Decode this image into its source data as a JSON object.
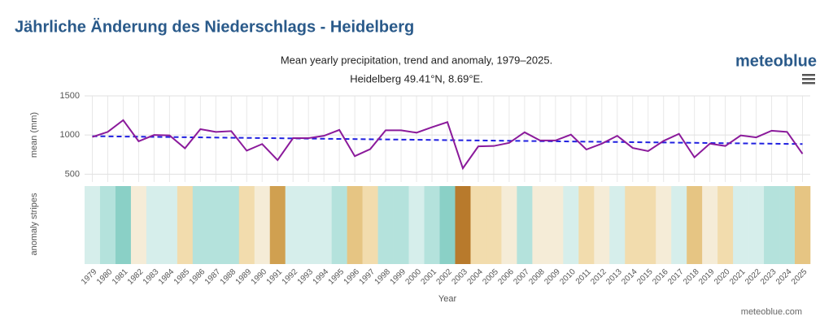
{
  "header": {
    "title": "Jährliche Änderung des Niederschlags - Heidelberg"
  },
  "brand": "meteoblue",
  "credit": "meteoblue.com",
  "chart_data": {
    "type": "line",
    "title": "Mean yearly precipitation, trend and anomaly, 1979–2025.",
    "subtitle": "Heidelberg 49.41°N, 8.69°E.",
    "y_label": "mean (mm)",
    "stripes_label": "anomaly stripes",
    "x_label": "Year",
    "categories": [
      "1979",
      "1980",
      "1981",
      "1982",
      "1983",
      "1984",
      "1985",
      "1986",
      "1987",
      "1988",
      "1989",
      "1990",
      "1991",
      "1992",
      "1993",
      "1994",
      "1995",
      "1996",
      "1997",
      "1998",
      "1999",
      "2000",
      "2001",
      "2002",
      "2003",
      "2004",
      "2005",
      "2006",
      "2007",
      "2008",
      "2009",
      "2010",
      "2011",
      "2012",
      "2013",
      "2014",
      "2015",
      "2016",
      "2017",
      "2018",
      "2019",
      "2020",
      "2021",
      "2022",
      "2023",
      "2024",
      "2025"
    ],
    "values": [
      975,
      1040,
      1190,
      920,
      1000,
      995,
      830,
      1075,
      1040,
      1050,
      800,
      885,
      680,
      960,
      960,
      990,
      1065,
      730,
      820,
      1060,
      1060,
      1030,
      1100,
      1165,
      575,
      855,
      860,
      900,
      1035,
      930,
      930,
      1005,
      815,
      890,
      990,
      835,
      795,
      925,
      1015,
      715,
      890,
      860,
      995,
      970,
      1055,
      1040,
      760
    ],
    "color": "#8b1a9b",
    "trend": {
      "color": "#2020e0",
      "values": [
        985,
        885
      ]
    },
    "stripe_colors": [
      "#d6eeeb",
      "#b4e2dc",
      "#8ad0c6",
      "#f5ecd7",
      "#d6eeeb",
      "#d6eeeb",
      "#f2dcad",
      "#b4e2dc",
      "#b4e2dc",
      "#b4e2dc",
      "#f2dcad",
      "#f5ecd7",
      "#d0a050",
      "#d6eeeb",
      "#d6eeeb",
      "#d6eeeb",
      "#b4e2dc",
      "#e6c583",
      "#f2dcad",
      "#b4e2dc",
      "#b4e2dc",
      "#d6eeeb",
      "#b4e2dc",
      "#8ad0c6",
      "#b87a2c",
      "#f2dcad",
      "#f2dcad",
      "#f5ecd7",
      "#b4e2dc",
      "#f5ecd7",
      "#f5ecd7",
      "#d6eeeb",
      "#f2dcad",
      "#f5ecd7",
      "#d6eeeb",
      "#f2dcad",
      "#f2dcad",
      "#f5ecd7",
      "#d6eeeb",
      "#e6c583",
      "#f5ecd7",
      "#f2dcad",
      "#d6eeeb",
      "#d6eeeb",
      "#b4e2dc",
      "#b4e2dc",
      "#e6c583"
    ],
    "ylim": [
      400,
      1500
    ],
    "yticks": [
      500,
      1000,
      1500
    ],
    "grid": true
  }
}
